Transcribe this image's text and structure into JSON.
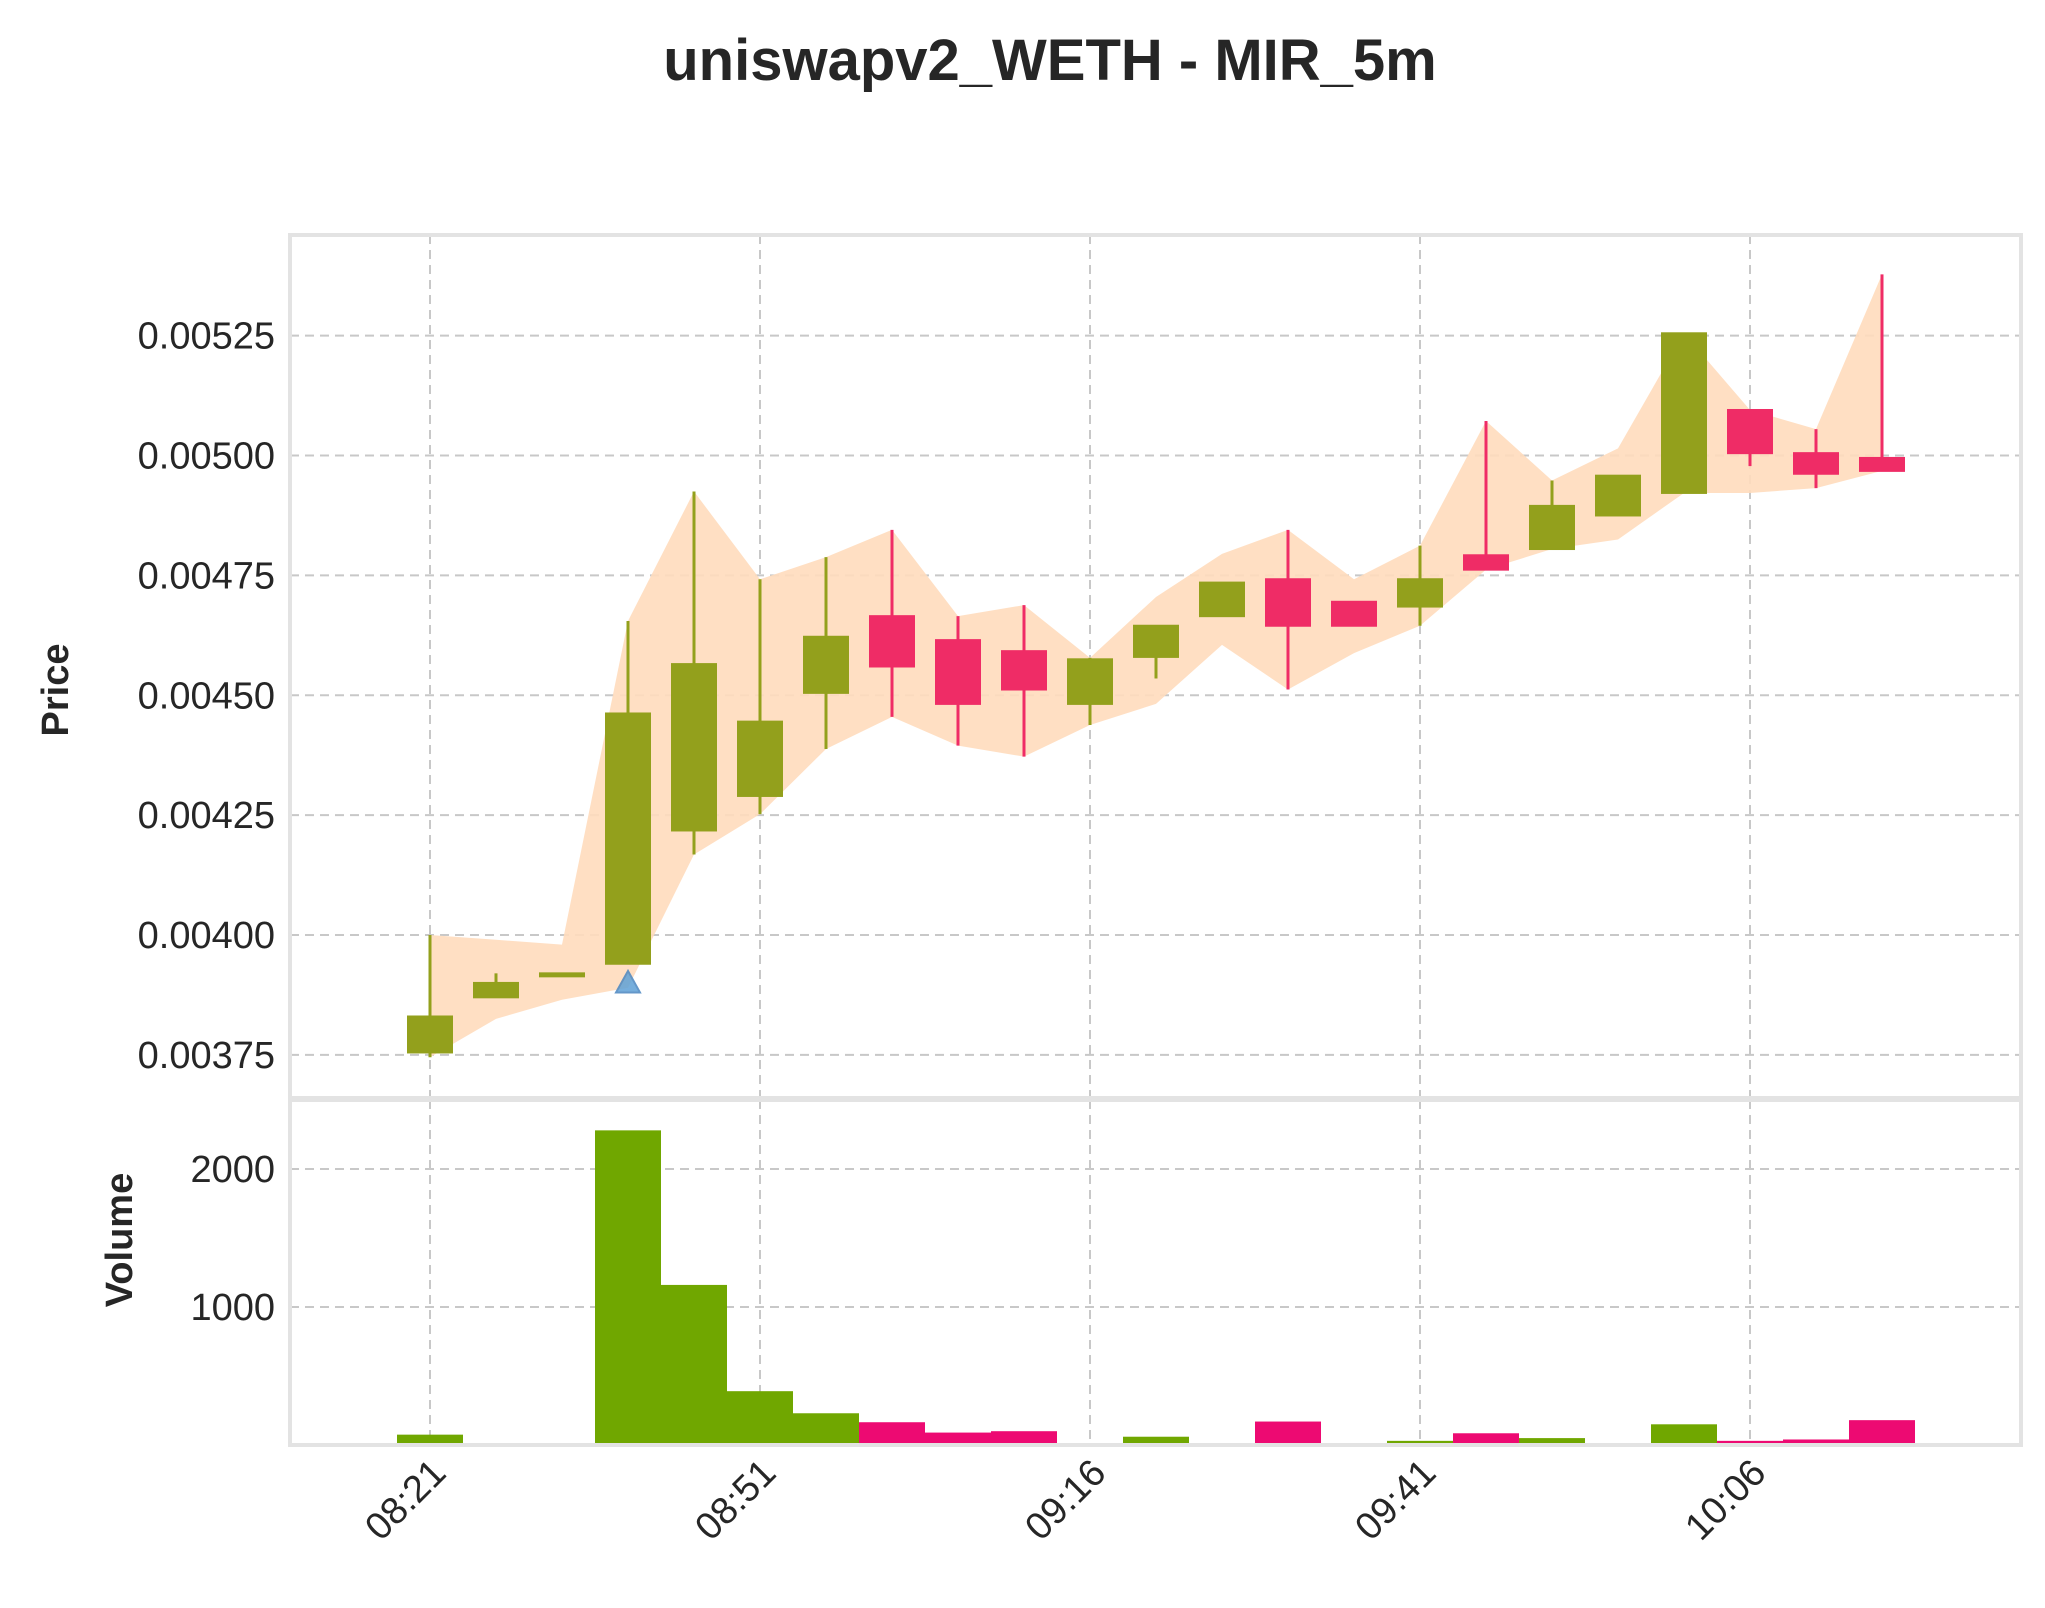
{
  "chart_data": {
    "type": "candlestick",
    "title": "uniswapv2_WETH - MIR_5m",
    "colors": {
      "up": "#93a01c",
      "down": "#ef2c66",
      "vol_up": "#70a700",
      "vol_down": "#ed0a72",
      "band": "#ffdcbd",
      "marker": "#5fa1d6"
    },
    "x_ticks": [
      {
        "index": 0,
        "label": "08:21"
      },
      {
        "index": 5,
        "label": "08:51"
      },
      {
        "index": 10,
        "label": "09:16"
      },
      {
        "index": 15,
        "label": "09:41"
      },
      {
        "index": 20,
        "label": "10:06"
      }
    ],
    "price_panel": {
      "ylabel": "Price",
      "ylim": [
        0.00366,
        0.00546
      ],
      "yticks": [
        "0.00375",
        "0.00400",
        "0.00425",
        "0.00450",
        "0.00475",
        "0.00500",
        "0.00525"
      ],
      "grid": true
    },
    "volume_panel": {
      "ylabel": "Volume",
      "ylim": [
        0,
        2500
      ],
      "yticks": [
        "1000",
        "2000"
      ],
      "grid": true
    },
    "candles": [
      {
        "o": 0.003755,
        "h": 0.004,
        "l": 0.003745,
        "c": 0.00383,
        "v": 75
      },
      {
        "o": 0.00387,
        "h": 0.00392,
        "l": 0.00387,
        "c": 0.0039,
        "v": 10
      },
      {
        "o": 0.00392,
        "h": 0.00392,
        "l": 0.00392,
        "c": 0.00392,
        "v": 0
      },
      {
        "o": 0.00394,
        "h": 0.004655,
        "l": 0.00394,
        "c": 0.004462,
        "v": 2280
      },
      {
        "o": 0.004218,
        "h": 0.004925,
        "l": 0.004168,
        "c": 0.004565,
        "v": 1160
      },
      {
        "o": 0.00429,
        "h": 0.004742,
        "l": 0.004252,
        "c": 0.004445,
        "v": 390
      },
      {
        "o": 0.004505,
        "h": 0.004788,
        "l": 0.004388,
        "c": 0.004622,
        "v": 230
      },
      {
        "o": 0.004665,
        "h": 0.004845,
        "l": 0.004455,
        "c": 0.00456,
        "v": 165
      },
      {
        "o": 0.004615,
        "h": 0.004665,
        "l": 0.004395,
        "c": 0.004482,
        "v": 90
      },
      {
        "o": 0.004592,
        "h": 0.004688,
        "l": 0.004372,
        "c": 0.004512,
        "v": 100
      },
      {
        "o": 0.004482,
        "h": 0.004578,
        "l": 0.004438,
        "c": 0.004575,
        "v": 0
      },
      {
        "o": 0.00458,
        "h": 0.004645,
        "l": 0.004535,
        "c": 0.004645,
        "v": 60
      },
      {
        "o": 0.004665,
        "h": 0.004735,
        "l": 0.004665,
        "c": 0.004735,
        "v": 0
      },
      {
        "o": 0.004742,
        "h": 0.004845,
        "l": 0.004512,
        "c": 0.004645,
        "v": 170
      },
      {
        "o": 0.004695,
        "h": 0.004695,
        "l": 0.004645,
        "c": 0.004645,
        "v": 0
      },
      {
        "o": 0.004685,
        "h": 0.004812,
        "l": 0.004645,
        "c": 0.004742,
        "v": 30
      },
      {
        "o": 0.004792,
        "h": 0.005072,
        "l": 0.004762,
        "c": 0.004762,
        "v": 85
      },
      {
        "o": 0.004805,
        "h": 0.004948,
        "l": 0.004805,
        "c": 0.004895,
        "v": 50
      },
      {
        "o": 0.004875,
        "h": 0.004958,
        "l": 0.004875,
        "c": 0.004958,
        "v": 0
      },
      {
        "o": 0.004922,
        "h": 0.005255,
        "l": 0.004922,
        "c": 0.005255,
        "v": 150
      },
      {
        "o": 0.005095,
        "h": 0.005095,
        "l": 0.004978,
        "c": 0.005005,
        "v": 30
      },
      {
        "o": 0.005005,
        "h": 0.005055,
        "l": 0.004932,
        "c": 0.004962,
        "v": 40
      },
      {
        "o": 0.004995,
        "h": 0.005378,
        "l": 0.004968,
        "c": 0.004968,
        "v": 180
      }
    ],
    "band_upper": [
      0.004,
      0.00399,
      0.00398,
      0.004655,
      0.004925,
      0.004742,
      0.004788,
      0.004845,
      0.004665,
      0.004688,
      0.004578,
      0.004705,
      0.004795,
      0.004845,
      0.004742,
      0.004812,
      0.005072,
      0.004948,
      0.005015,
      0.005255,
      0.005095,
      0.005055,
      0.005378
    ],
    "band_lower": [
      0.003745,
      0.003825,
      0.003865,
      0.00389,
      0.004168,
      0.004252,
      0.004388,
      0.004455,
      0.004395,
      0.004372,
      0.004438,
      0.004482,
      0.004605,
      0.004512,
      0.004588,
      0.004645,
      0.004762,
      0.004805,
      0.004825,
      0.004922,
      0.004922,
      0.004932,
      0.004968
    ],
    "markers": [
      {
        "index": 3,
        "price": 0.0039,
        "shape": "triangle-up"
      }
    ]
  }
}
